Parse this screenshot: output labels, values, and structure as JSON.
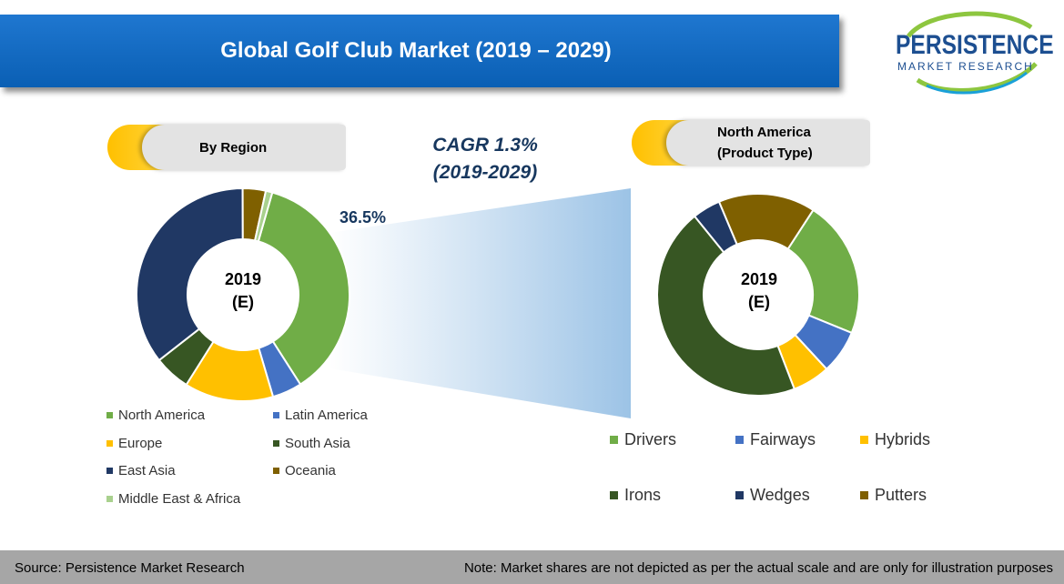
{
  "title": "Global Golf Club Market (2019 – 2029)",
  "logo": {
    "name": "PERSISTENCE",
    "subtitle": "MARKET RESEARCH"
  },
  "region_panel": {
    "label": "By Region"
  },
  "product_panel": {
    "label_line1": "North America",
    "label_line2": "(Product Type)"
  },
  "cagr": {
    "line1": "CAGR 1.3%",
    "line2": "(2019-2029)"
  },
  "highlight_pct": "36.5%",
  "colors": {
    "title_bar": "#1a70c8",
    "accent": "#ffc000",
    "text_dark": "#17375e",
    "footer": "#a6a6a6"
  },
  "chart_data": [
    {
      "type": "donut",
      "center_label": {
        "line1": "2019",
        "line2": "(E)"
      },
      "start_angle_deg": 16,
      "series": [
        {
          "name": "North America",
          "value": 36.5,
          "color": "#70ad47"
        },
        {
          "name": "Latin America",
          "value": 4.5,
          "color": "#4472c4"
        },
        {
          "name": "Europe",
          "value": 13.5,
          "color": "#ffc000"
        },
        {
          "name": "South Asia",
          "value": 5.5,
          "color": "#375623"
        },
        {
          "name": "East Asia",
          "value": 35.5,
          "color": "#203864"
        },
        {
          "name": "Oceania",
          "value": 3.5,
          "color": "#7f6000"
        },
        {
          "name": "Middle East & Africa",
          "value": 1.0,
          "color": "#a9d18e"
        }
      ],
      "legend": [
        "North America",
        "Latin America",
        "Europe",
        "South Asia",
        "East Asia",
        "Oceania",
        "Middle East & Africa"
      ]
    },
    {
      "type": "donut",
      "center_label": {
        "line1": "2019",
        "line2": "(E)"
      },
      "start_angle_deg": 33,
      "series": [
        {
          "name": "Drivers",
          "value": 22,
          "color": "#70ad47"
        },
        {
          "name": "Fairways",
          "value": 7,
          "color": "#4472c4"
        },
        {
          "name": "Hybrids",
          "value": 6,
          "color": "#ffc000"
        },
        {
          "name": "Irons",
          "value": 45,
          "color": "#375623"
        },
        {
          "name": "Wedges",
          "value": 4.5,
          "color": "#203864"
        },
        {
          "name": "Putters",
          "value": 15.5,
          "color": "#7f6000"
        }
      ],
      "legend": [
        "Drivers",
        "Fairways",
        "Hybrids",
        "Irons",
        "Wedges",
        "Putters"
      ]
    }
  ],
  "footer": {
    "source": "Source: Persistence Market Research",
    "note": "Note: Market shares are not depicted as per the actual scale and are only for illustration purposes"
  }
}
